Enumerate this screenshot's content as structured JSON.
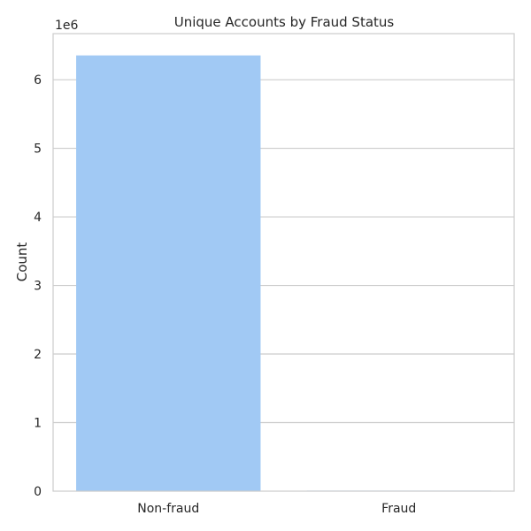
{
  "chart_data": {
    "type": "bar",
    "title": "Unique Accounts by Fraud Status",
    "xlabel": "",
    "ylabel": "Count",
    "categories": [
      "Non-fraud",
      "Fraud"
    ],
    "values": [
      6354407,
      8213
    ],
    "ylim": [
      0,
      6672127
    ],
    "y_ticks": [
      0,
      1,
      2,
      3,
      4,
      5,
      6
    ],
    "y_tick_labels": [
      "0",
      "1",
      "2",
      "3",
      "4",
      "5",
      "6"
    ],
    "y_offset_label": "1e6",
    "y_scale_factor": 1000000,
    "grid": true,
    "grid_axis": "y",
    "bar_color": "#a1c9f4"
  }
}
